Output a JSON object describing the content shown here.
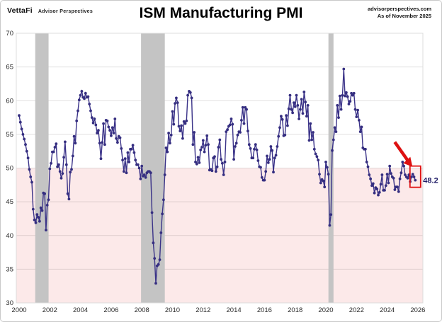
{
  "header": {
    "brand": "VettaFi",
    "brand_sub": "Advisor Perspectives",
    "title": "ISM Manufacturing PMI",
    "source_line1": "advisorperspectives.com",
    "source_line2": "As of November 2025"
  },
  "chart_data": {
    "type": "line",
    "title": "ISM Manufacturing PMI",
    "frequency": "monthly",
    "x_start": "2000-01",
    "x_end": "2025-11",
    "ylim": [
      30,
      70
    ],
    "ytick_interval": 5,
    "yticks": [
      30,
      35,
      40,
      45,
      50,
      55,
      60,
      65,
      70
    ],
    "xticks": [
      2000,
      2002,
      2004,
      2006,
      2008,
      2010,
      2012,
      2014,
      2016,
      2018,
      2020,
      2022,
      2024,
      2026
    ],
    "grid": true,
    "legend_position": "none",
    "line_color": "#3a3288",
    "marker_color": "#352e80",
    "contraction_zone": {
      "from": 30,
      "to": 50,
      "color": "#fce9e9",
      "meaning": "PMI below 50 = contraction"
    },
    "recession_color": "#c4c4c4",
    "recessions": [
      {
        "start": 2001.05,
        "end": 2001.92
      },
      {
        "start": 2007.95,
        "end": 2009.5
      },
      {
        "start": 2020.17,
        "end": 2020.5
      }
    ],
    "annotation": {
      "label": "48.2",
      "value": 48.2,
      "date": "2025-11",
      "label_color": "#1f1b66",
      "arrow_color": "#dd1111",
      "box_color": "#e01010"
    },
    "series": [
      {
        "name": "ISM Manufacturing PMI",
        "values_by_year": {
          "2000": [
            57.8,
            56.8,
            55.8,
            55.0,
            54.3,
            53.5,
            52.5,
            51.5,
            49.8,
            48.7,
            47.9,
            43.9
          ],
          "2001": [
            42.3,
            41.9,
            43.1,
            42.7,
            42.1,
            44.1,
            43.7,
            46.3,
            46.2,
            40.8,
            44.5,
            45.3
          ],
          "2002": [
            49.9,
            50.7,
            52.4,
            52.4,
            53.1,
            53.6,
            50.2,
            50.5,
            49.5,
            48.5,
            49.2,
            51.6
          ],
          "2003": [
            53.9,
            50.5,
            46.2,
            45.4,
            49.4,
            49.8,
            51.8,
            54.7,
            53.7,
            57.0,
            58.5,
            60.1
          ],
          "2004": [
            60.8,
            61.4,
            60.5,
            60.3,
            61.1,
            60.5,
            60.6,
            59.5,
            58.5,
            57.5,
            56.7,
            57.3
          ],
          "2005": [
            56.4,
            55.2,
            55.6,
            53.7,
            51.4,
            53.8,
            56.6,
            53.5,
            57.1,
            57.0,
            56.1,
            55.6
          ],
          "2006": [
            54.8,
            56.0,
            55.2,
            57.3,
            54.4,
            53.8,
            54.7,
            54.5,
            52.9,
            51.2,
            49.5,
            51.4
          ],
          "2007": [
            49.3,
            52.3,
            50.9,
            52.8,
            52.8,
            53.4,
            52.3,
            51.2,
            50.5,
            50.5,
            50.0,
            48.4
          ],
          "2008": [
            50.3,
            48.8,
            49.0,
            48.6,
            49.3,
            49.5,
            49.5,
            49.3,
            43.4,
            38.9,
            36.6,
            32.9
          ],
          "2009": [
            35.5,
            35.7,
            36.4,
            40.4,
            43.2,
            45.3,
            49.0,
            53.0,
            52.4,
            55.2,
            53.7,
            54.9
          ],
          "2010": [
            58.4,
            56.5,
            59.6,
            60.4,
            59.7,
            56.2,
            55.5,
            56.3,
            54.4,
            56.9,
            56.6,
            57.0
          ],
          "2011": [
            60.8,
            61.4,
            61.2,
            60.4,
            53.5,
            55.3,
            50.9,
            50.6,
            51.6,
            50.8,
            52.7,
            53.1
          ],
          "2012": [
            54.1,
            52.4,
            53.4,
            54.8,
            53.5,
            49.7,
            49.8,
            49.6,
            51.5,
            51.7,
            49.5,
            50.2
          ],
          "2013": [
            53.1,
            54.2,
            51.3,
            50.7,
            49.0,
            50.9,
            55.4,
            55.7,
            56.2,
            56.4,
            57.3,
            56.5
          ],
          "2014": [
            51.3,
            53.2,
            53.7,
            54.9,
            55.4,
            55.3,
            57.1,
            59.0,
            56.6,
            59.0,
            58.7,
            55.5
          ],
          "2015": [
            53.5,
            52.9,
            51.5,
            51.5,
            52.8,
            53.5,
            52.7,
            51.1,
            50.2,
            50.1,
            48.6,
            48.2
          ],
          "2016": [
            48.2,
            49.5,
            51.8,
            50.8,
            51.3,
            53.2,
            52.6,
            49.4,
            51.5,
            51.9,
            53.2,
            54.7
          ],
          "2017": [
            56.0,
            57.7,
            57.2,
            54.8,
            54.9,
            57.8,
            56.3,
            58.8,
            60.8,
            58.7,
            58.2,
            59.7
          ],
          "2018": [
            59.1,
            60.8,
            59.3,
            57.3,
            58.7,
            60.2,
            58.1,
            61.3,
            59.8,
            57.7,
            59.3,
            54.1
          ],
          "2019": [
            56.6,
            54.2,
            55.3,
            52.8,
            52.1,
            51.7,
            51.2,
            49.1,
            47.8,
            48.3,
            48.1,
            47.2
          ],
          "2020": [
            50.9,
            50.1,
            49.1,
            41.5,
            43.1,
            52.6,
            54.2,
            56.0,
            55.4,
            59.3,
            57.5,
            60.7
          ],
          "2021": [
            58.7,
            60.8,
            64.7,
            60.7,
            61.2,
            60.6,
            59.5,
            59.9,
            61.1,
            60.8,
            61.1,
            58.7
          ],
          "2022": [
            57.6,
            58.6,
            57.1,
            55.4,
            56.1,
            53.0,
            52.8,
            52.8,
            50.9,
            50.2,
            49.0,
            48.4
          ],
          "2023": [
            47.4,
            47.7,
            46.3,
            47.1,
            46.9,
            46.0,
            46.4,
            47.6,
            49.0,
            46.7,
            46.7,
            47.4
          ],
          "2024": [
            49.1,
            47.8,
            50.3,
            49.2,
            48.7,
            48.5,
            46.8,
            47.2,
            47.2,
            46.5,
            48.4,
            49.3
          ],
          "2025": [
            50.9,
            50.3,
            49.0,
            48.7,
            48.5,
            49.0,
            48.0,
            48.7,
            49.1,
            48.7,
            48.2
          ]
        }
      }
    ]
  }
}
